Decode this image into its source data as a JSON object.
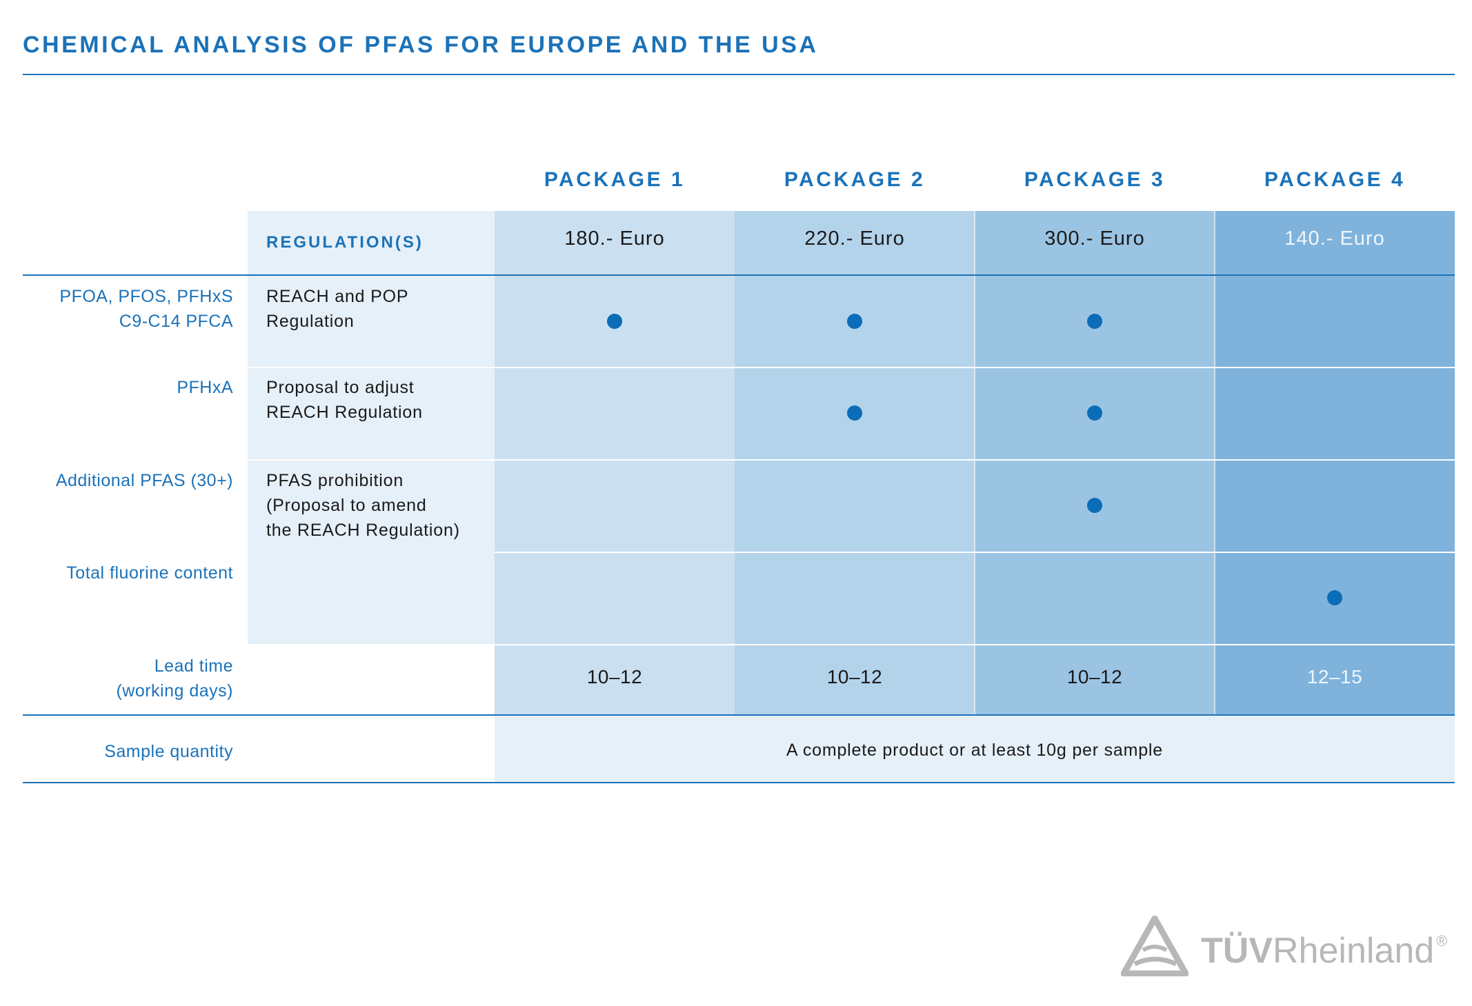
{
  "title": "CHEMICAL ANALYSIS OF PFAS FOR EUROPE AND THE USA",
  "table": {
    "regulation_header": "REGULATION(S)",
    "packages": [
      {
        "name": "PACKAGE 1",
        "price": "180.- Euro",
        "lead_time": "10–12"
      },
      {
        "name": "PACKAGE 2",
        "price": "220.- Euro",
        "lead_time": "10–12"
      },
      {
        "name": "PACKAGE 3",
        "price": "300.- Euro",
        "lead_time": "10–12"
      },
      {
        "name": "PACKAGE 4",
        "price": "140.- Euro",
        "lead_time": "12–15"
      }
    ],
    "rows": [
      {
        "substance_lines": [
          "PFOA, PFOS, PFHxS",
          "C9-C14 PFCA"
        ],
        "regulation_lines": [
          "REACH and POP",
          "Regulation"
        ],
        "included": [
          true,
          true,
          true,
          false
        ]
      },
      {
        "substance_lines": [
          "PFHxA"
        ],
        "regulation_lines": [
          "Proposal to adjust",
          "REACH Regulation"
        ],
        "included": [
          false,
          true,
          true,
          false
        ]
      },
      {
        "substance_lines": [
          "Additional PFAS (30+)"
        ],
        "regulation_lines": [
          "PFAS prohibition",
          "(Proposal to amend",
          "the REACH Regulation)"
        ],
        "included": [
          false,
          false,
          true,
          false
        ]
      },
      {
        "substance_lines": [
          "Total fluorine content"
        ],
        "regulation_lines": [],
        "included": [
          false,
          false,
          false,
          true
        ]
      }
    ],
    "lead_time_label": [
      "Lead time",
      "(working days)"
    ],
    "sample_quantity_label": "Sample quantity",
    "sample_quantity_value": "A complete product or at least 10g per sample"
  },
  "logo": {
    "brand_bold": "TÜV",
    "brand_regular": "Rheinland",
    "registered_mark": "®",
    "icon": "tuv-triangle-logo"
  },
  "colors": {
    "accent": "#1b72b8",
    "dot": "#0b6cb7",
    "regulation_column": "#e6f0f8",
    "package_1": "#cadff0",
    "package_2": "#b3d3eb",
    "package_3": "#9bc4e3",
    "package_4": "#7fb3dc"
  }
}
